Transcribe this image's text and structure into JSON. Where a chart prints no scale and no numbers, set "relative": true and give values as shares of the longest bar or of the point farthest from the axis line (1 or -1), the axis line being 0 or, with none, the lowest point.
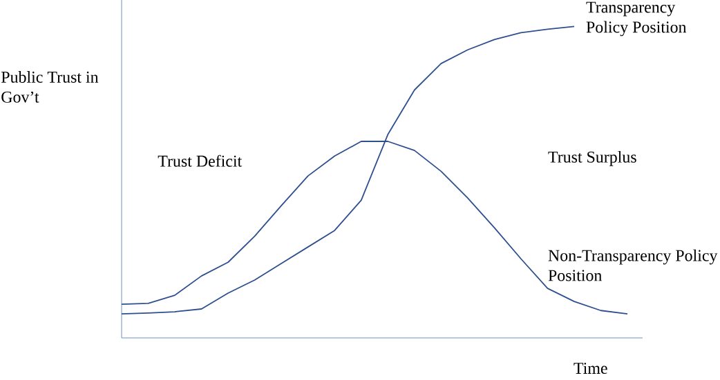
{
  "chart_data": {
    "type": "line",
    "relative": true,
    "xlabel": "Time",
    "ylabel": "Public Trust in Gov’t",
    "categories": [
      null,
      null,
      null,
      null,
      null,
      null,
      null,
      null,
      null,
      null,
      null,
      null,
      null,
      null,
      null,
      null,
      null,
      null,
      null,
      null
    ],
    "series": [
      {
        "name": "Transparency Policy Position",
        "color": "#2e4f8f",
        "values": [
          0.077,
          0.08,
          0.084,
          0.093,
          0.144,
          0.186,
          0.239,
          0.292,
          0.345,
          0.442,
          0.653,
          0.796,
          0.881,
          0.925,
          0.958,
          0.98,
          0.991,
          1.0,
          null,
          null
        ]
      },
      {
        "name": "Non-Transparency Policy Position",
        "color": "#2e4f8f",
        "values": [
          0.108,
          0.111,
          0.137,
          0.199,
          0.243,
          0.327,
          0.425,
          0.52,
          0.584,
          0.631,
          0.631,
          0.602,
          0.535,
          0.449,
          0.354,
          0.254,
          0.159,
          0.117,
          0.088,
          0.077
        ]
      }
    ],
    "annotations": [
      "Trust Deficit",
      "Trust Surplus"
    ],
    "marker": "none",
    "line_style": "solid"
  }
}
